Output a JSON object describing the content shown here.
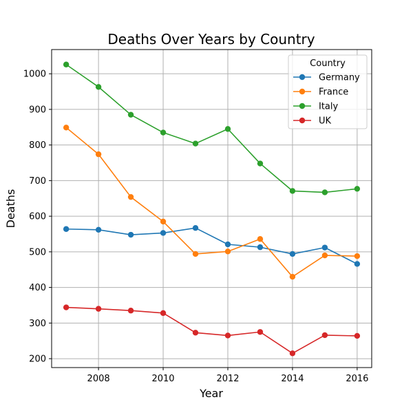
{
  "chart_data": {
    "type": "line",
    "title": "Deaths Over Years by Country",
    "xlabel": "Year",
    "ylabel": "Deaths",
    "x": [
      2007,
      2008,
      2009,
      2010,
      2011,
      2012,
      2013,
      2014,
      2015,
      2016
    ],
    "xlim": [
      2006.55,
      2016.45
    ],
    "ylim": [
      175,
      1068
    ],
    "x_ticks": [
      "2008",
      "2010",
      "2012",
      "2014",
      "2016"
    ],
    "y_ticks": [
      "200",
      "300",
      "400",
      "500",
      "600",
      "700",
      "800",
      "900",
      "1000"
    ],
    "grid": true,
    "legend_title": "Country",
    "legend_position": "top-right",
    "series": [
      {
        "name": "Germany",
        "color": "#1f77b4",
        "values": [
          564,
          562,
          548,
          553,
          567,
          521,
          513,
          494,
          512,
          466
        ]
      },
      {
        "name": "France",
        "color": "#ff7f0e",
        "values": [
          849,
          774,
          654,
          585,
          494,
          501,
          536,
          430,
          490,
          488
        ]
      },
      {
        "name": "Italy",
        "color": "#2ca02c",
        "values": [
          1026,
          963,
          885,
          835,
          804,
          845,
          748,
          671,
          667,
          677
        ]
      },
      {
        "name": "UK",
        "color": "#d62728",
        "values": [
          344,
          340,
          335,
          328,
          273,
          265,
          275,
          215,
          266,
          264
        ]
      }
    ]
  }
}
